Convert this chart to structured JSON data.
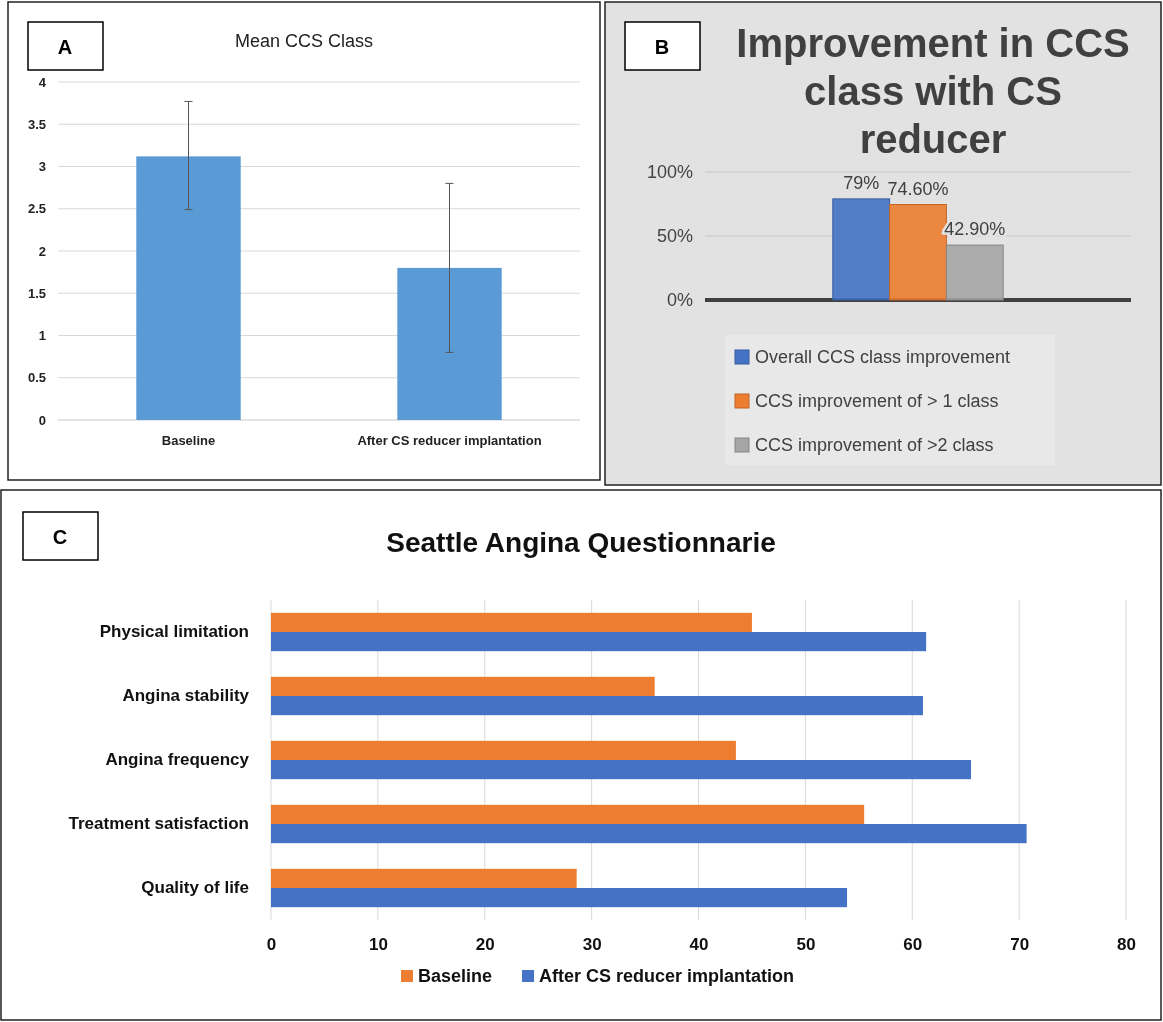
{
  "chart_data": [
    {
      "type": "bar",
      "title": "Mean CCS Class",
      "annotations": [
        "A"
      ],
      "categories": [
        "Baseline",
        "After CS reducer implantation"
      ],
      "values": [
        3.12,
        1.8
      ],
      "errors": [
        [
          2.49,
          3.77
        ],
        [
          0.8,
          2.8
        ]
      ],
      "color": "#5b9bd5",
      "ylim": [
        0,
        4
      ],
      "yticks": [
        0,
        0.5,
        1,
        1.5,
        2,
        2.5,
        3,
        3.5,
        4
      ],
      "grid": "y"
    },
    {
      "type": "bar",
      "title": "Improvement in CCS class with CS reducer",
      "annotations": [
        "B"
      ],
      "categories": [
        null
      ],
      "series": [
        {
          "name": "Overall CCS class improvement",
          "color": "#4472c4",
          "values": [
            79
          ],
          "value_labels": [
            "79%"
          ]
        },
        {
          "name": "CCS improvement of > 1 class",
          "color": "#ed7d31",
          "values": [
            74.6
          ],
          "value_labels": [
            "74.60%"
          ]
        },
        {
          "name": "CCS improvement of >2 class",
          "color": "#a5a5a5",
          "values": [
            42.9
          ],
          "value_labels": [
            "42.90%"
          ]
        }
      ],
      "ylim": [
        0,
        100
      ],
      "yticks": [
        {
          "value": 0,
          "label": "0%"
        },
        {
          "value": 50,
          "label": "50%"
        },
        {
          "value": 100,
          "label": "100%"
        }
      ],
      "grid": "y",
      "legend": "bottom"
    },
    {
      "type": "bar",
      "orientation": "horizontal",
      "title": "Seattle Angina Questionnarie",
      "annotations": [
        "C"
      ],
      "categories": [
        "Physical limitation",
        "Angina stability",
        "Angina frequency",
        "Treatment satisfaction",
        "Quality of life"
      ],
      "series": [
        {
          "name": "Baseline",
          "color": "#ed7d31",
          "values": [
            45.0,
            35.9,
            43.5,
            55.5,
            28.6
          ]
        },
        {
          "name": "After CS reducer implantation",
          "color": "#4472c4",
          "values": [
            61.3,
            61.0,
            65.5,
            70.7,
            53.9
          ]
        }
      ],
      "xlim": [
        0,
        80
      ],
      "xticks": [
        0,
        10,
        20,
        30,
        40,
        50,
        60,
        70,
        80
      ],
      "grid": "x",
      "legend": "bottom"
    }
  ]
}
